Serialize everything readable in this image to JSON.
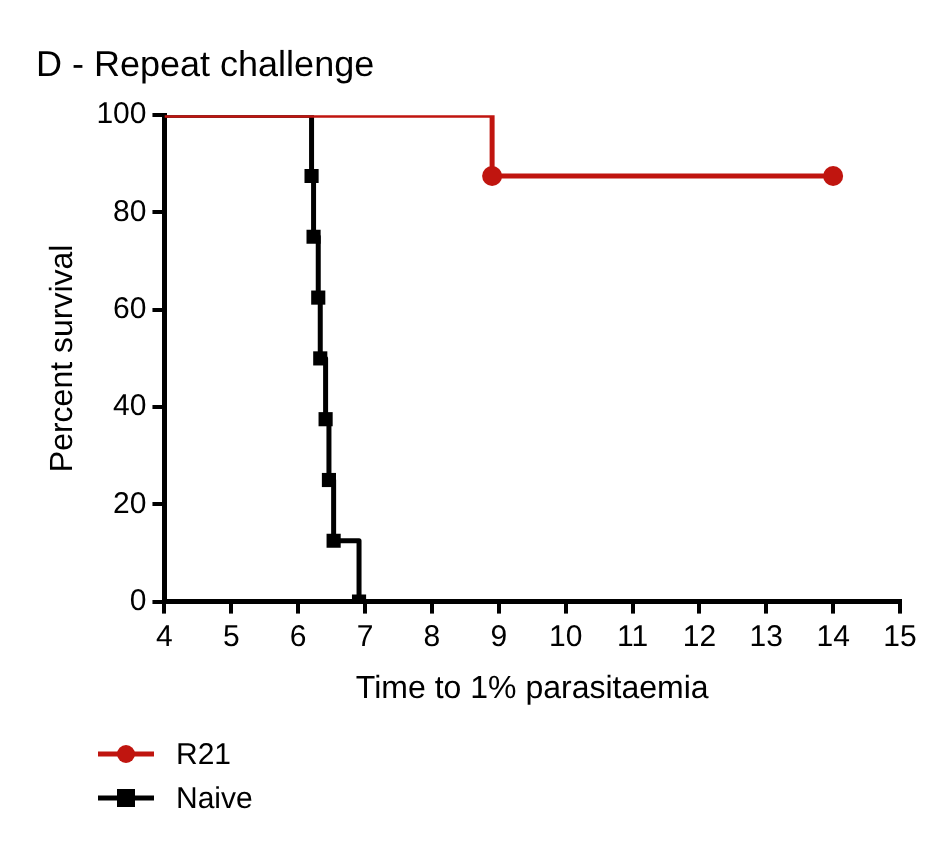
{
  "chart_data": {
    "type": "step",
    "title": "D - Repeat challenge",
    "xlabel": "Time to 1% parasitaemia",
    "ylabel": "Percent survival",
    "xlim": [
      4,
      15
    ],
    "xticks": [
      4,
      5,
      6,
      7,
      8,
      9,
      10,
      11,
      12,
      13,
      14,
      15
    ],
    "ylim": [
      0,
      100
    ],
    "yticks": [
      0,
      20,
      40,
      60,
      80,
      100
    ],
    "grid": false,
    "legend": "bottom",
    "series": [
      {
        "name": "R21",
        "color": "#c0150f",
        "marker": "circle",
        "x": [
          4,
          8.9,
          14
        ],
        "values": [
          100,
          87.5,
          87.5
        ]
      },
      {
        "name": "Naive",
        "color": "#000000",
        "marker": "square",
        "x": [
          4,
          6.2,
          6.23,
          6.3,
          6.33,
          6.41,
          6.46,
          6.53,
          6.91
        ],
        "values": [
          100,
          87.5,
          75,
          62.5,
          50,
          37.5,
          25,
          12.5,
          0
        ]
      }
    ]
  }
}
